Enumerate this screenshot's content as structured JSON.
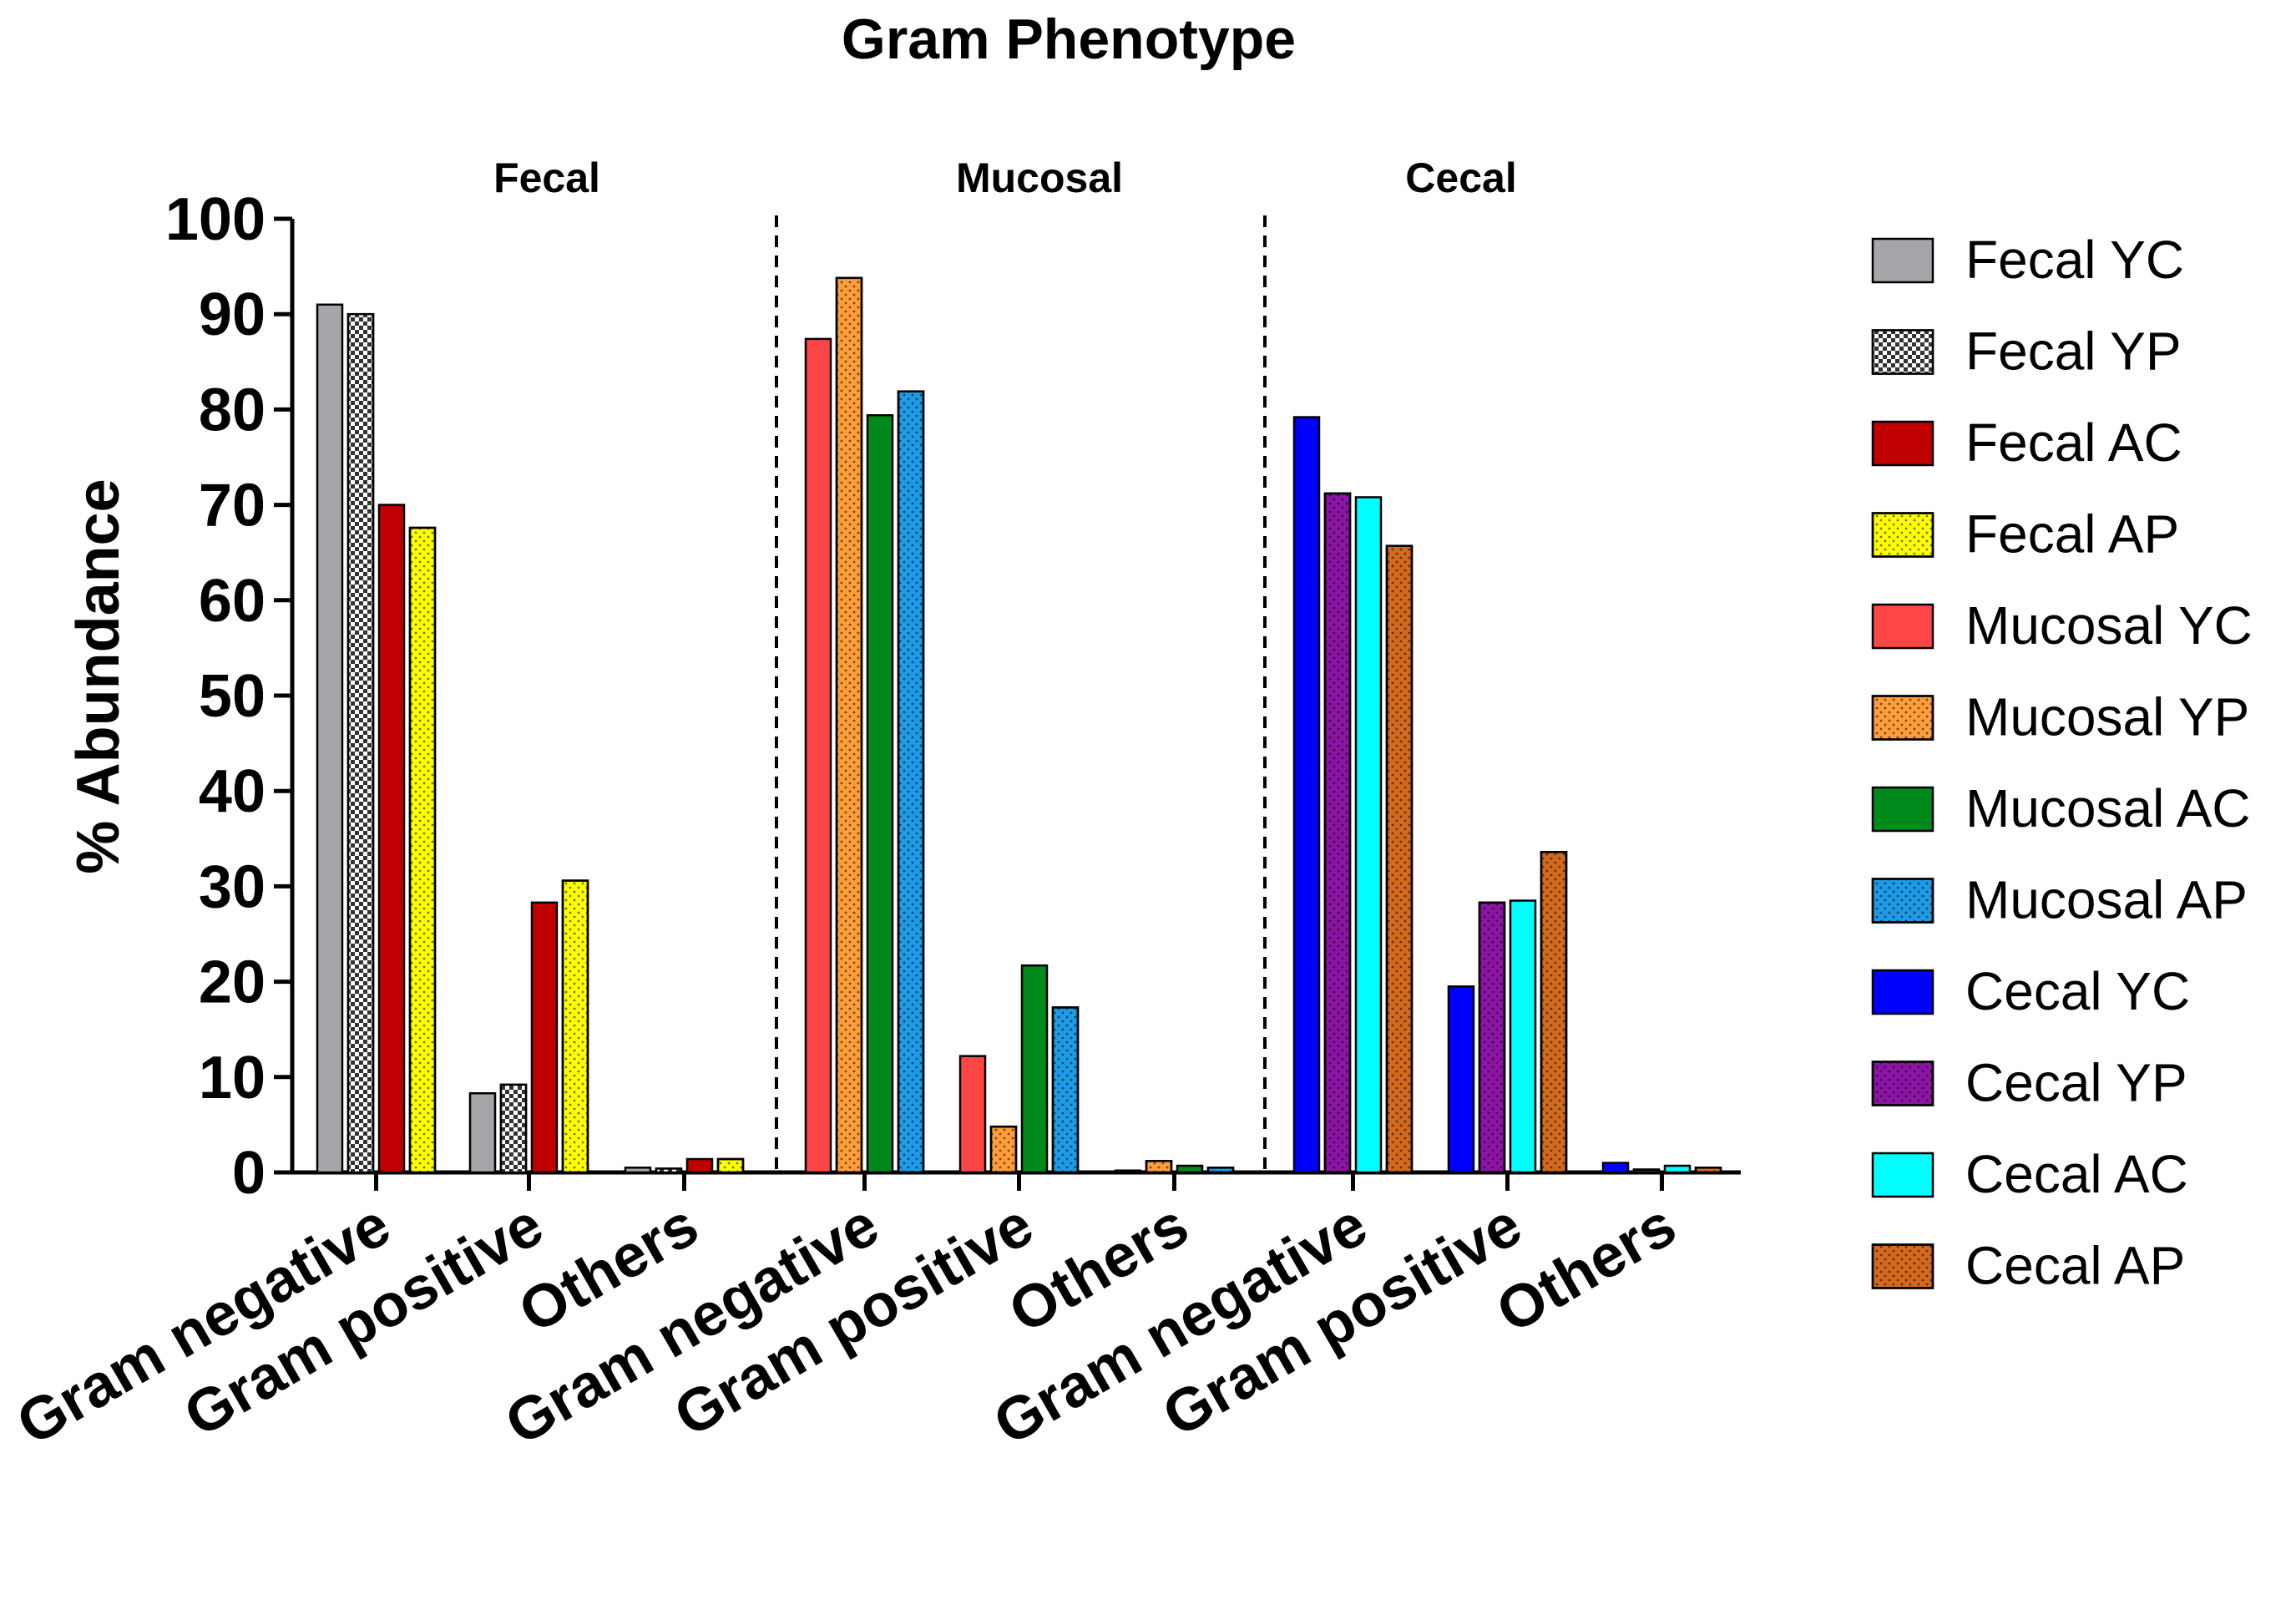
{
  "chart_data": {
    "type": "bar",
    "title": "Gram Phenotype",
    "ylabel": "% Abundance",
    "xlabel": "",
    "ylim": [
      0,
      100
    ],
    "yticks": [
      "0",
      "10",
      "20",
      "30",
      "40",
      "50",
      "60",
      "70",
      "80",
      "90",
      "100"
    ],
    "panels": [
      {
        "label": "Fecal",
        "categories": [
          "Gram negative",
          "Gram positive",
          "Others"
        ],
        "series": [
          {
            "name": "Fecal YC",
            "color": "#a6a6aa",
            "pattern": "solid",
            "values": [
              91.0,
              8.3,
              0.5
            ]
          },
          {
            "name": "Fecal YP",
            "color": "#ffffff",
            "pattern": "checker",
            "values": [
              90.0,
              9.2,
              0.4
            ]
          },
          {
            "name": "Fecal AC",
            "color": "#c00000",
            "pattern": "solid",
            "values": [
              70.0,
              28.3,
              1.4
            ]
          },
          {
            "name": "Fecal AP",
            "color": "#ffff00",
            "pattern": "dots",
            "values": [
              67.6,
              30.6,
              1.4
            ]
          }
        ]
      },
      {
        "label": "Mucosal",
        "categories": [
          "Gram negative",
          "Gram positive",
          "Others"
        ],
        "series": [
          {
            "name": "Mucosal YC",
            "color": "#ff4646",
            "pattern": "solid",
            "values": [
              87.4,
              12.2,
              0.2
            ]
          },
          {
            "name": "Mucosal YP",
            "color": "#ff9d3a",
            "pattern": "dots",
            "values": [
              93.8,
              4.8,
              1.2
            ]
          },
          {
            "name": "Mucosal AC",
            "color": "#008a1c",
            "pattern": "solid",
            "values": [
              79.4,
              21.7,
              0.7
            ]
          },
          {
            "name": "Mucosal AP",
            "color": "#1e9be6",
            "pattern": "dots",
            "values": [
              81.9,
              17.3,
              0.5
            ]
          }
        ]
      },
      {
        "label": "Cecal",
        "categories": [
          "Gram negative",
          "Gram positive",
          "Others"
        ],
        "series": [
          {
            "name": "Cecal YC",
            "color": "#0000ff",
            "pattern": "solid",
            "values": [
              79.2,
              19.5,
              1.0
            ]
          },
          {
            "name": "Cecal YP",
            "color": "#8b14a4",
            "pattern": "dots",
            "values": [
              71.2,
              28.3,
              0.3
            ]
          },
          {
            "name": "Cecal AC",
            "color": "#00ffff",
            "pattern": "solid",
            "values": [
              70.8,
              28.5,
              0.7
            ]
          },
          {
            "name": "Cecal AP",
            "color": "#d2691e",
            "pattern": "dots",
            "values": [
              65.7,
              33.6,
              0.5
            ]
          }
        ]
      }
    ],
    "legend": {
      "placement": "right",
      "entries": [
        "Fecal YC",
        "Fecal YP",
        "Fecal AC",
        "Fecal AP",
        "Mucosal YC",
        "Mucosal YP",
        "Mucosal AC",
        "Mucosal AP",
        "Cecal YC",
        "Cecal YP",
        "Cecal AC",
        "Cecal AP"
      ]
    }
  }
}
